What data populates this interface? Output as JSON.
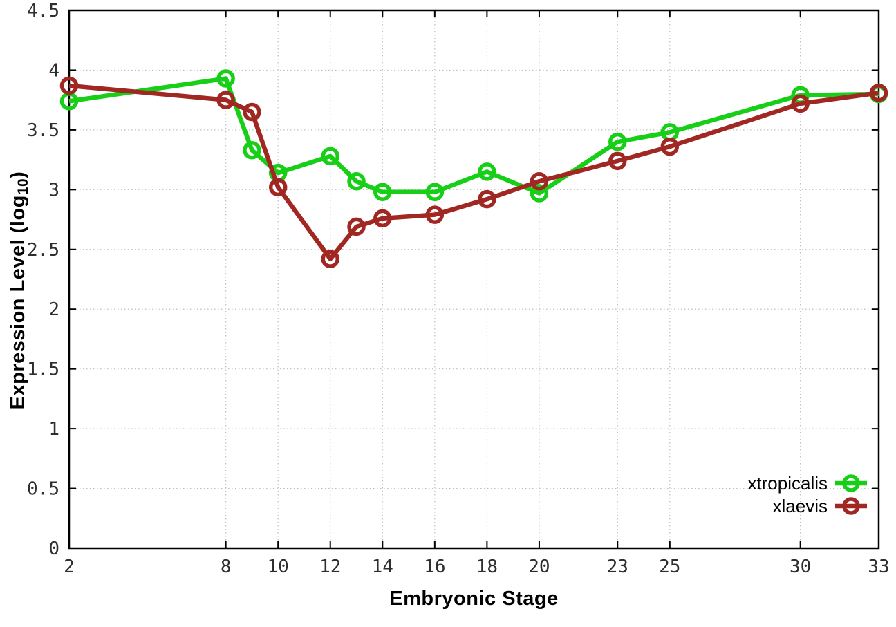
{
  "chart_data": {
    "type": "line",
    "title": "",
    "xlabel": "Embryonic Stage",
    "ylabel": {
      "pre": "Expression Level (log",
      "sub": "10",
      "post": ")"
    },
    "x": [
      2,
      8,
      9,
      10,
      12,
      13,
      14,
      16,
      18,
      20,
      23,
      25,
      30,
      33
    ],
    "xticks": [
      2,
      8,
      10,
      12,
      14,
      16,
      18,
      20,
      23,
      25,
      30,
      33
    ],
    "yticks": [
      0,
      0.5,
      1,
      1.5,
      2,
      2.5,
      3,
      3.5,
      4,
      4.5
    ],
    "xlim": [
      2,
      33
    ],
    "ylim": [
      0,
      4.5
    ],
    "grid": true,
    "legend_position": "bottom-right",
    "series": [
      {
        "name": "xtropicalis",
        "color": "#18cf18",
        "values": [
          3.74,
          3.93,
          3.33,
          3.14,
          3.28,
          3.07,
          2.98,
          2.98,
          3.15,
          2.97,
          3.4,
          3.48,
          3.79,
          3.8
        ]
      },
      {
        "name": "xlaevis",
        "color": "#a12722",
        "values": [
          3.87,
          3.75,
          3.65,
          3.02,
          2.42,
          2.69,
          2.76,
          2.79,
          2.92,
          3.07,
          3.24,
          3.36,
          3.72,
          3.81
        ]
      }
    ],
    "styles": {
      "background": "#ffffff",
      "grid_color": "#bdbdbd",
      "border_color": "#000000",
      "tick_label_color": "#2e2e2e"
    }
  }
}
